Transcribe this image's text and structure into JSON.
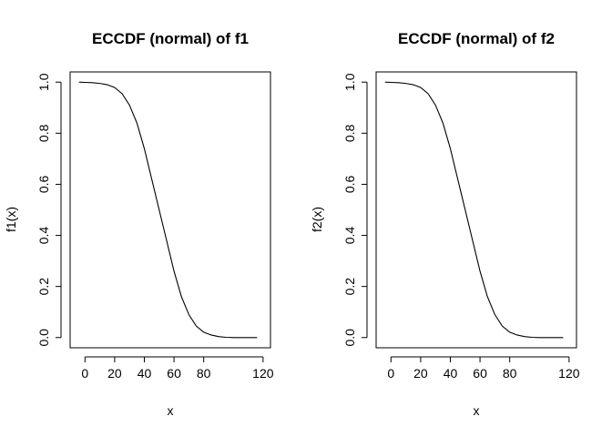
{
  "chart_data": [
    {
      "type": "line",
      "title": "ECCDF (normal) of f1",
      "xlabel": "x",
      "ylabel": "f1(x)",
      "xlim": [
        -5,
        120
      ],
      "ylim": [
        0,
        1
      ],
      "xticks": [
        0,
        20,
        40,
        60,
        80,
        120
      ],
      "yticks": [
        0.0,
        0.2,
        0.4,
        0.6,
        0.8,
        1.0
      ],
      "ytick_labels": [
        "0.0",
        "0.2",
        "0.4",
        "0.6",
        "0.8",
        "1.0"
      ],
      "series": [
        {
          "x": [
            -4,
            0,
            5,
            10,
            15,
            20,
            25,
            30,
            35,
            40,
            45,
            50,
            55,
            60,
            65,
            70,
            75,
            80,
            85,
            90,
            95,
            100,
            105,
            110,
            116
          ],
          "y": [
            1.0,
            0.999,
            0.998,
            0.995,
            0.99,
            0.979,
            0.955,
            0.91,
            0.84,
            0.74,
            0.62,
            0.5,
            0.38,
            0.26,
            0.16,
            0.09,
            0.045,
            0.021,
            0.01,
            0.004,
            0.001,
            0.0,
            0.0,
            0.0,
            0.0
          ]
        }
      ]
    },
    {
      "type": "line",
      "title": "ECCDF (normal) of f2",
      "xlabel": "x",
      "ylabel": "f2(x)",
      "xlim": [
        -5,
        120
      ],
      "ylim": [
        0,
        1
      ],
      "xticks": [
        0,
        20,
        40,
        60,
        80,
        120
      ],
      "yticks": [
        0.0,
        0.2,
        0.4,
        0.6,
        0.8,
        1.0
      ],
      "ytick_labels": [
        "0.0",
        "0.2",
        "0.4",
        "0.6",
        "0.8",
        "1.0"
      ],
      "series": [
        {
          "x": [
            -4,
            0,
            5,
            10,
            15,
            20,
            25,
            30,
            35,
            40,
            45,
            50,
            55,
            60,
            65,
            70,
            75,
            80,
            85,
            90,
            95,
            100,
            105,
            110,
            116
          ],
          "y": [
            1.0,
            0.999,
            0.998,
            0.995,
            0.99,
            0.979,
            0.955,
            0.91,
            0.84,
            0.74,
            0.62,
            0.5,
            0.38,
            0.26,
            0.16,
            0.09,
            0.045,
            0.021,
            0.01,
            0.004,
            0.001,
            0.0,
            0.0,
            0.0,
            0.0
          ]
        }
      ]
    }
  ]
}
